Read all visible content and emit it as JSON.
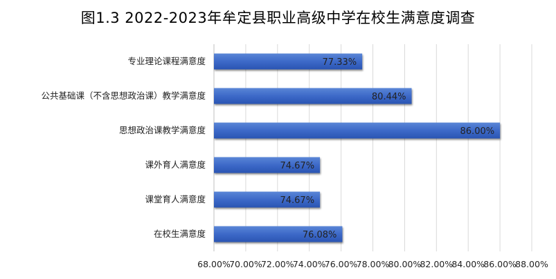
{
  "chart_data": {
    "type": "bar",
    "orientation": "horizontal",
    "title": "图1.3   2022-2023年牟定县职业高级中学在校生满意度调查",
    "categories": [
      "专业理论课程满意度",
      "公共基础课（不含思想政治课）教学满意度",
      "思想政治课教学满意度",
      "课外育人满意度",
      "课堂育人满意度",
      "在校生满意度"
    ],
    "values": [
      77.33,
      80.44,
      86.0,
      74.67,
      74.67,
      76.08
    ],
    "data_labels": [
      "77.33%",
      "80.44%",
      "86.00%",
      "74.67%",
      "74.67%",
      "76.08%"
    ],
    "xlim": [
      68,
      88
    ],
    "x_ticks": [
      "68.00%",
      "70.00%",
      "72.00%",
      "74.00%",
      "76.00%",
      "78.00%",
      "80.00%",
      "82.00%",
      "84.00%",
      "86.00%",
      "88.00%"
    ],
    "grid": true,
    "legend": "none",
    "bar_color": "#3A64C4"
  }
}
